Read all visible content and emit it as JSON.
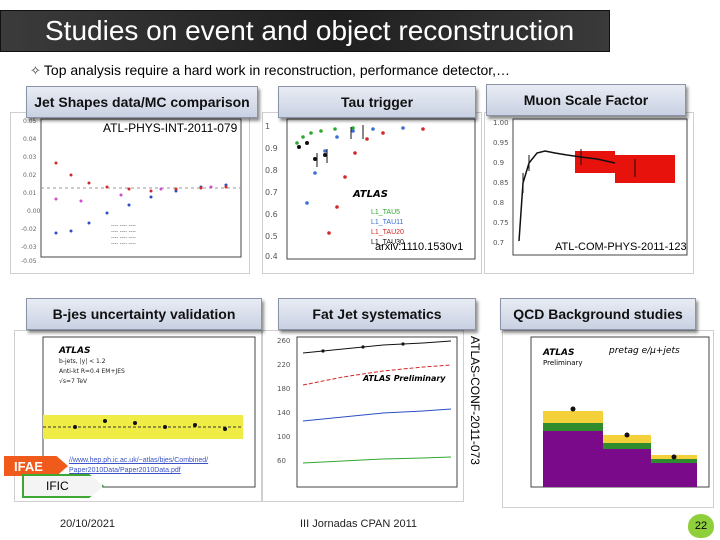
{
  "slide": {
    "title": "Studies on event and object reconstruction",
    "subtitle_marker": "✧",
    "subtitle": "Top analysis require a hard work in reconstruction, performance detector,…"
  },
  "panels": {
    "jet_shapes": {
      "label": "Jet Shapes data/MC comparison",
      "ref": "ATL-PHYS-INT-2011-079"
    },
    "tau_trigger": {
      "label": "Tau trigger",
      "ref": "arxiv:1110.1530v1",
      "legend": [
        "L1_TAU5",
        "L1_TAU11",
        "L1_TAU20",
        "L1_TAU30"
      ]
    },
    "muon_scale": {
      "label": "Muon Scale Factor",
      "ref": "ATL-COM-PHYS-2011-123"
    },
    "bjes": {
      "label": "B-jes uncertainty validation",
      "url_line1": "//www.hep.ph.ic.ac.uk/~atlas/bjes/Combined/",
      "url_line2": "Paper2010Data/Paper2010Data.pdf"
    },
    "fatjet": {
      "label": "Fat Jet systematics",
      "ref": "ATLAS-CONF-2011-073"
    },
    "qcd": {
      "label": "QCD Background studies"
    }
  },
  "footer": {
    "date": "20/10/2021",
    "event": "III Jornadas CPAN 2011",
    "page": "22",
    "ifae": "IFAE",
    "ific": "IFIC"
  },
  "colors": {
    "title_bg": "#2a2a2a",
    "pill_bg": "#d3d9e7",
    "ifae": "#f05a1a",
    "ific_border": "#3ea832",
    "muon_band": "#e8120c",
    "qcd_purple": "#7b0a8a",
    "qcd_green": "#2e8b2e",
    "qcd_yellow": "#f4d13a"
  }
}
